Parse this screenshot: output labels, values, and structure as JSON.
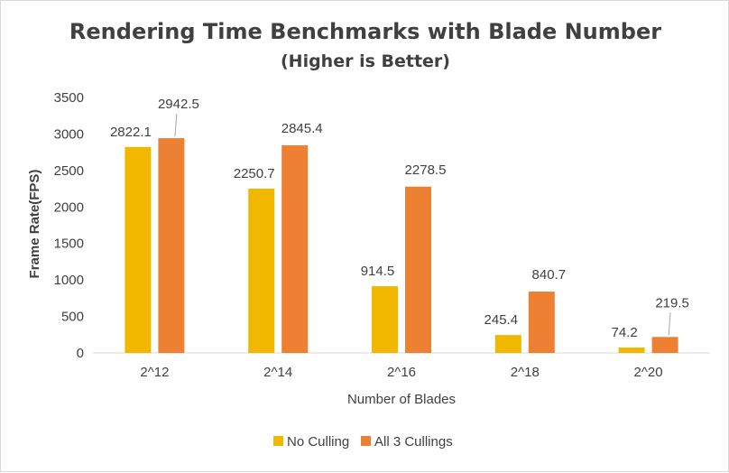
{
  "chart_data": {
    "type": "bar",
    "title": "Rendering Time Benchmarks with Blade Number",
    "subtitle": "(Higher is Better)",
    "xlabel": "Number of  Blades",
    "ylabel": "Frame Rate(FPS)",
    "categories": [
      "2^12",
      "2^14",
      "2^16",
      "2^18",
      "2^20"
    ],
    "series": [
      {
        "name": "No Culling",
        "color": "#F2B800",
        "values": [
          2822.1,
          2250.7,
          914.5,
          245.4,
          74.2
        ]
      },
      {
        "name": "All 3 Cullings",
        "color": "#ED8033",
        "values": [
          2942.5,
          2845.4,
          2278.5,
          840.7,
          219.5
        ]
      }
    ],
    "ylim": [
      0,
      3500
    ],
    "yticks": [
      0,
      500,
      1000,
      1500,
      2000,
      2500,
      3000,
      3500
    ],
    "legend_position": "bottom",
    "grid": false
  }
}
